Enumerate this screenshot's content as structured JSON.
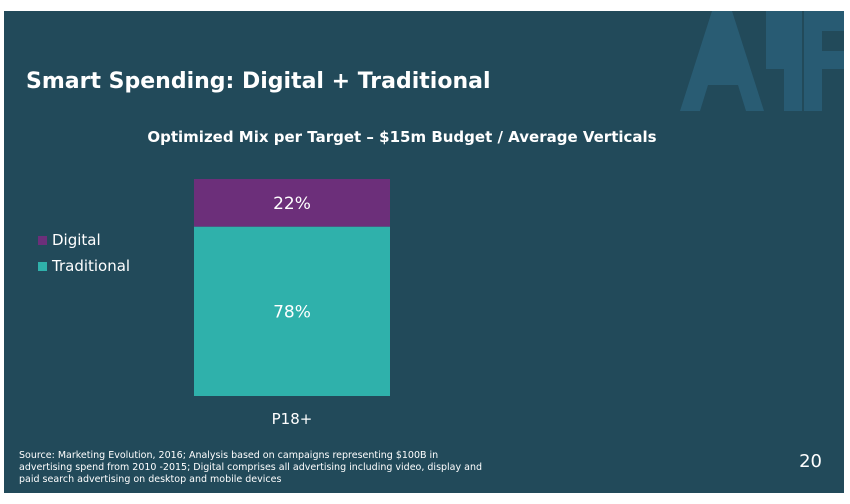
{
  "slide": {
    "title": "Smart Spending: Digital + Traditional",
    "subtitle": "Optimized Mix per Target  – $15m Budget / Average Verticals",
    "source": "Source: Marketing Evolution, 2016; Analysis based on campaigns representing $100B in advertising spend from 2010 -2015; Digital comprises all advertising including video, display and paid search advertising on desktop and mobile devices",
    "page_number": "20",
    "logo_text": "ARF"
  },
  "colors": {
    "background": "#224a5a",
    "digital": "#6c2f7a",
    "traditional": "#2fb1ab"
  },
  "chart_data": {
    "type": "bar",
    "stacked": true,
    "title": "Optimized Mix per Target  – $15m Budget / Average Verticals",
    "categories": [
      "P18+"
    ],
    "series": [
      {
        "name": "Digital",
        "values": [
          22
        ],
        "label": "22%"
      },
      {
        "name": "Traditional",
        "values": [
          78
        ],
        "label": "78%"
      }
    ],
    "ylim": [
      0,
      100
    ],
    "legend": "left",
    "grid": false
  }
}
